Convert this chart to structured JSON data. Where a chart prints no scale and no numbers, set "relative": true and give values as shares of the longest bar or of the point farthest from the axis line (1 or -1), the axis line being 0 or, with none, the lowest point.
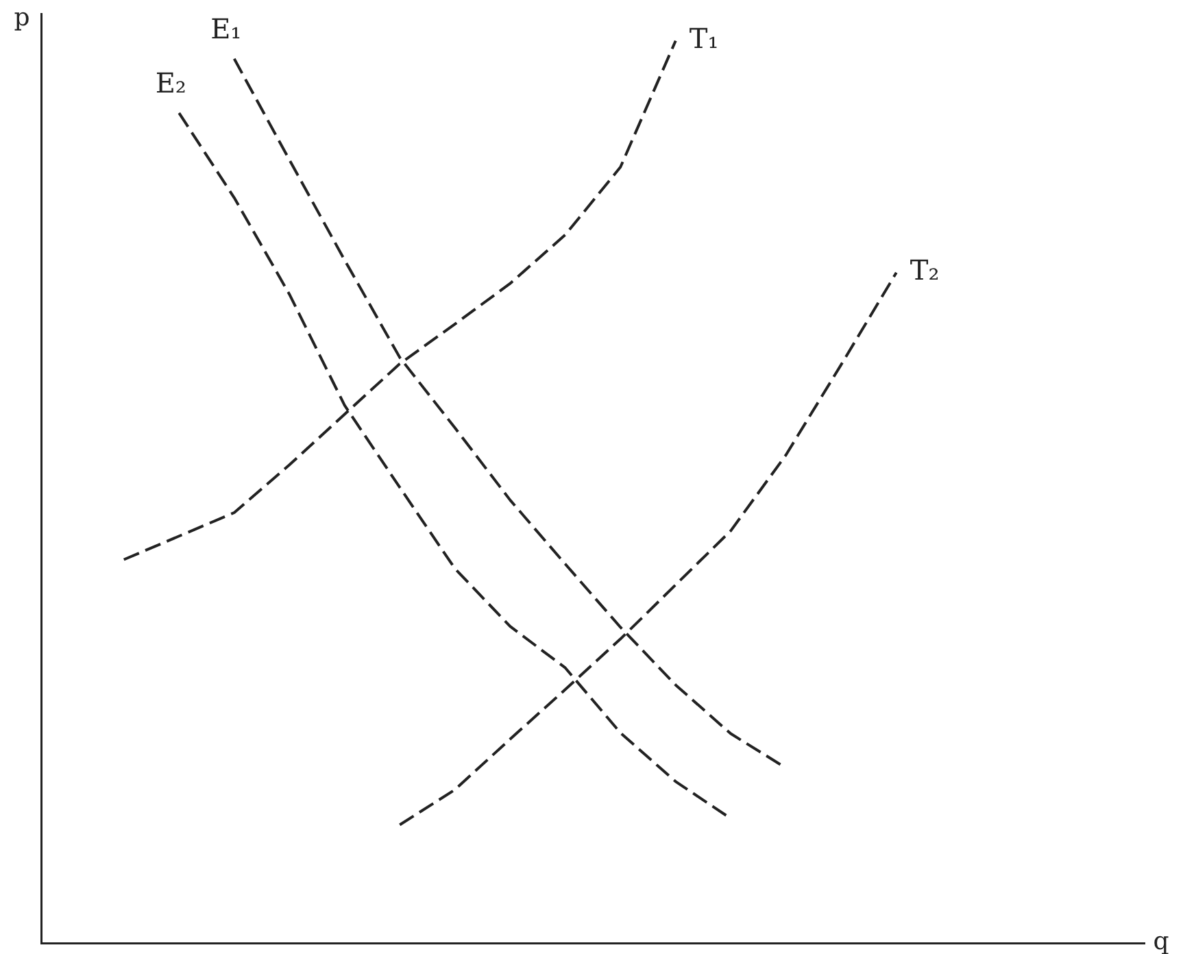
{
  "chart_data": {
    "type": "line",
    "relative": true,
    "xlabel": "q",
    "ylabel": "p",
    "tick_labels": false,
    "legend": false,
    "line_style": "dashed",
    "marker": "none",
    "categories": [
      null,
      null,
      null,
      null,
      null,
      null,
      null,
      null,
      null,
      null,
      null,
      null,
      null,
      null,
      null,
      null,
      null,
      null,
      null,
      null
    ],
    "series": [
      {
        "name": "T₁",
        "color": "#222222",
        "values": [
          null,
          0.425,
          0.451,
          0.477,
          0.53,
          0.586,
          0.642,
          0.686,
          0.731,
          0.785,
          0.86,
          1.0,
          null,
          null,
          null,
          null,
          null,
          null,
          null,
          null
        ]
      },
      {
        "name": "T₂",
        "color": "#222222",
        "values": [
          null,
          null,
          null,
          null,
          null,
          null,
          0.131,
          0.17,
          0.226,
          0.281,
          0.337,
          0.397,
          0.457,
          0.541,
          0.641,
          0.743,
          null,
          null,
          null,
          null
        ]
      },
      {
        "name": "E₁",
        "color": "#222222",
        "values": [
          null,
          null,
          null,
          0.98,
          0.868,
          0.757,
          0.649,
          0.571,
          0.491,
          0.42,
          0.35,
          0.286,
          0.232,
          0.194,
          null,
          null,
          null,
          null,
          null,
          null
        ]
      },
      {
        "name": "E₂",
        "color": "#222222",
        "values": [
          null,
          null,
          0.92,
          0.826,
          0.719,
          0.596,
          0.505,
          0.415,
          0.351,
          0.305,
          0.233,
          0.179,
          0.138,
          null,
          null,
          null,
          null,
          null,
          null,
          null
        ]
      }
    ]
  }
}
